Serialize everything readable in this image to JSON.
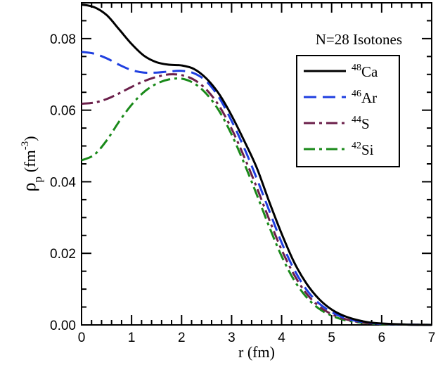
{
  "chart_data": {
    "type": "line",
    "title": "",
    "annotation": "N=28 Isotones",
    "xlabel": "r (fm)",
    "ylabel": {
      "rho": "ρ",
      "sub": "p",
      "unit_open": "(fm",
      "exp": "-3",
      "unit_close": ")"
    },
    "xlim": [
      0,
      7
    ],
    "ylim": [
      0,
      0.09
    ],
    "x_ticks": [
      "0",
      "1",
      "2",
      "3",
      "4",
      "5",
      "6",
      "7"
    ],
    "y_ticks": [
      "0.00",
      "0.02",
      "0.04",
      "0.06",
      "0.08"
    ],
    "legend_position": "top-right",
    "series": [
      {
        "name": "48Ca",
        "mass": "48",
        "element": "Ca",
        "color": "#000000",
        "dash": "solid",
        "x": [
          0,
          0.25,
          0.5,
          0.75,
          1.0,
          1.25,
          1.5,
          1.75,
          2.0,
          2.25,
          2.5,
          2.75,
          3.0,
          3.25,
          3.5,
          3.75,
          4.0,
          4.25,
          4.5,
          4.75,
          5.0,
          5.25,
          5.5,
          5.75,
          6.0,
          6.5,
          7.0
        ],
        "y": [
          0.0895,
          0.0888,
          0.0866,
          0.0826,
          0.0785,
          0.0752,
          0.0734,
          0.0727,
          0.0725,
          0.0715,
          0.0688,
          0.0645,
          0.0585,
          0.0515,
          0.044,
          0.0345,
          0.0255,
          0.0175,
          0.0115,
          0.0072,
          0.0043,
          0.0025,
          0.0014,
          0.0007,
          0.0004,
          0.0001,
          0.0
        ]
      },
      {
        "name": "46Ar",
        "mass": "46",
        "element": "Ar",
        "color": "#1f3fe0",
        "dash": "long-dash",
        "x": [
          0,
          0.25,
          0.5,
          0.75,
          1.0,
          1.25,
          1.5,
          1.75,
          2.0,
          2.25,
          2.5,
          2.75,
          3.0,
          3.25,
          3.5,
          3.75,
          4.0,
          4.25,
          4.5,
          4.75,
          5.0,
          5.25,
          5.5,
          5.75,
          6.0,
          6.5,
          7.0
        ],
        "y": [
          0.0763,
          0.0758,
          0.0745,
          0.0727,
          0.0712,
          0.0705,
          0.0705,
          0.0708,
          0.071,
          0.0703,
          0.068,
          0.0635,
          0.057,
          0.0495,
          0.041,
          0.032,
          0.023,
          0.0155,
          0.0098,
          0.006,
          0.0036,
          0.002,
          0.0011,
          0.0006,
          0.0003,
          0.0001,
          0.0
        ]
      },
      {
        "name": "44S",
        "mass": "44",
        "element": "S",
        "color": "#6b1f4a",
        "dash": "dash-dot",
        "x": [
          0,
          0.25,
          0.5,
          0.75,
          1.0,
          1.25,
          1.5,
          1.75,
          2.0,
          2.25,
          2.5,
          2.75,
          3.0,
          3.25,
          3.5,
          3.75,
          4.0,
          4.25,
          4.5,
          4.75,
          5.0,
          5.25,
          5.5,
          5.75,
          6.0,
          6.5,
          7.0
        ],
        "y": [
          0.0618,
          0.0621,
          0.0631,
          0.0647,
          0.0665,
          0.0681,
          0.0693,
          0.07,
          0.0698,
          0.0685,
          0.0657,
          0.0612,
          0.0548,
          0.047,
          0.0385,
          0.0295,
          0.021,
          0.014,
          0.0087,
          0.0052,
          0.003,
          0.0017,
          0.0009,
          0.0005,
          0.0003,
          0.0001,
          0.0
        ]
      },
      {
        "name": "42Si",
        "mass": "42",
        "element": "Si",
        "color": "#1a8a1a",
        "dash": "dash-dot",
        "x": [
          0,
          0.25,
          0.5,
          0.75,
          1.0,
          1.25,
          1.5,
          1.75,
          2.0,
          2.25,
          2.5,
          2.75,
          3.0,
          3.25,
          3.5,
          3.75,
          4.0,
          4.25,
          4.5,
          4.75,
          5.0,
          5.25,
          5.5,
          5.75,
          6.0,
          6.5,
          7.0
        ],
        "y": [
          0.046,
          0.0475,
          0.0515,
          0.0568,
          0.0615,
          0.0651,
          0.0674,
          0.0686,
          0.0688,
          0.0675,
          0.0645,
          0.0598,
          0.0532,
          0.0452,
          0.0365,
          0.0275,
          0.0192,
          0.0125,
          0.0077,
          0.0045,
          0.0026,
          0.0014,
          0.0008,
          0.0004,
          0.0002,
          0.0001,
          0.0
        ]
      }
    ]
  }
}
